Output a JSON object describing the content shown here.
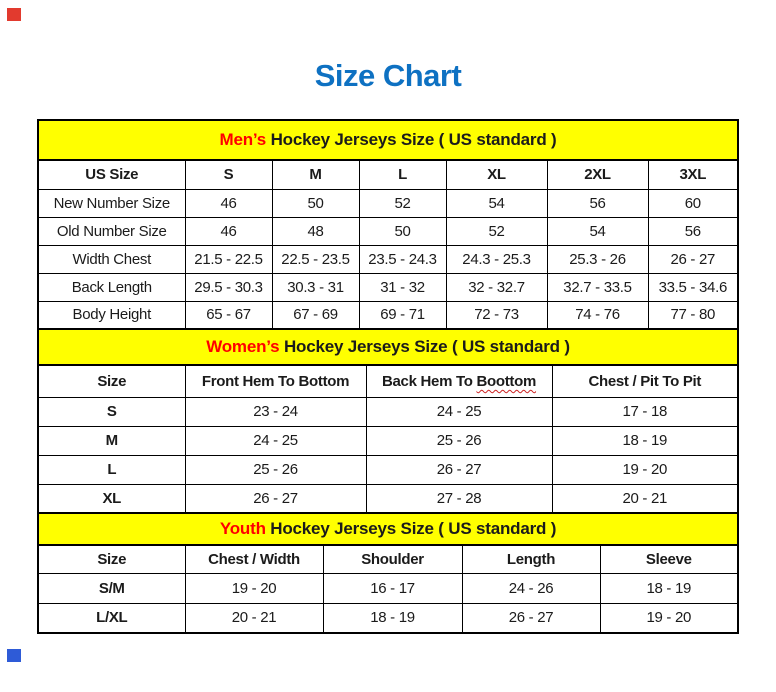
{
  "title": {
    "text": "Size Chart"
  },
  "colors": {
    "title_blue": "#0e71c2",
    "banner_yellow": "#ffff00",
    "highlight_red": "#ff0000",
    "border_black": "#000000",
    "corner_marker_red": "#e23a2e",
    "corner_marker_blue": "#2e5bd7"
  },
  "sections": [
    {
      "id": "mens",
      "row_label_bold": false,
      "heading": {
        "highlight": "Men’s",
        "rest": " Hockey Jerseys Size ( US standard )"
      },
      "columns": [
        "US Size",
        "S",
        "M",
        "L",
        "XL",
        "2XL",
        "3XL"
      ],
      "rows": [
        {
          "label": "New Number Size",
          "values": [
            "46",
            "50",
            "52",
            "54",
            "56",
            "60"
          ]
        },
        {
          "label": "Old Number Size",
          "values": [
            "46",
            "48",
            "50",
            "52",
            "54",
            "56"
          ]
        },
        {
          "label": "Width Chest",
          "values": [
            "21.5 - 22.5",
            "22.5 - 23.5",
            "23.5 - 24.3",
            "24.3 - 25.3",
            "25.3 - 26",
            "26 - 27"
          ]
        },
        {
          "label": "Back Length",
          "values": [
            "29.5 - 30.3",
            "30.3 - 31",
            "31 - 32",
            "32 - 32.7",
            "32.7 - 33.5",
            "33.5 - 34.6"
          ]
        },
        {
          "label": "Body Height",
          "values": [
            "65 - 67",
            "67 - 69",
            "69 - 71",
            "72 - 73",
            "74 - 76",
            "77 - 80"
          ]
        }
      ]
    },
    {
      "id": "womens",
      "row_label_bold": true,
      "heading": {
        "highlight": "Women’s",
        "rest": " Hockey Jerseys Size ( US standard )"
      },
      "columns": [
        "Size",
        "Front Hem To Bottom",
        "Back Hem To Boottom",
        "Chest / Pit To Pit"
      ],
      "misspelled": {
        "column_index": 2,
        "prefix": "Back Hem To ",
        "word": "Boottom"
      },
      "rows": [
        {
          "label": "S",
          "values": [
            "23 - 24",
            "24 - 25",
            "17 - 18"
          ]
        },
        {
          "label": "M",
          "values": [
            "24 - 25",
            "25 - 26",
            "18 - 19"
          ]
        },
        {
          "label": "L",
          "values": [
            "25 - 26",
            "26 - 27",
            "19 - 20"
          ]
        },
        {
          "label": "XL",
          "values": [
            "26 - 27",
            "27 - 28",
            "20 - 21"
          ]
        }
      ]
    },
    {
      "id": "youth",
      "row_label_bold": true,
      "heading": {
        "highlight": "Youth",
        "rest": " Hockey Jerseys Size ( US standard )"
      },
      "columns": [
        "Size",
        "Chest / Width",
        "Shoulder",
        "Length",
        "Sleeve"
      ],
      "rows": [
        {
          "label": "S/M",
          "values": [
            "19 - 20",
            "16 - 17",
            "24 - 26",
            "18 - 19"
          ]
        },
        {
          "label": "L/XL",
          "values": [
            "20 - 21",
            "18 - 19",
            "26 - 27",
            "19 - 20"
          ]
        }
      ]
    }
  ]
}
